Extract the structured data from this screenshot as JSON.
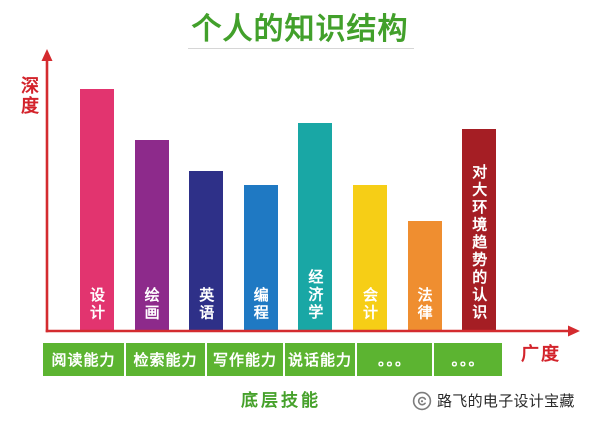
{
  "chart_data": {
    "type": "bar",
    "title": "个人的知识结构",
    "ylabel": "深度",
    "xlabel": "广度",
    "categories": [
      "设计",
      "绘画",
      "英语",
      "编程",
      "经济学",
      "会计",
      "法律",
      "对大环境趋势的认识"
    ],
    "values": [
      86,
      68,
      57,
      52,
      74,
      52,
      39,
      72
    ],
    "colors": [
      "#e2346f",
      "#8d2a8b",
      "#2e3088",
      "#1f79c3",
      "#19a7a5",
      "#f6ce16",
      "#ef8e30",
      "#a51e24"
    ],
    "grid": false
  },
  "foundation": {
    "items": [
      "阅读能力",
      "检索能力",
      "写作能力",
      "说话能力",
      "。。。",
      "。。。"
    ],
    "label": "底层技能"
  },
  "watermark": {
    "icon": "wechat-icon",
    "text": "路飞的电子设计宝藏"
  },
  "colors": {
    "title": "#42a02b",
    "axis": "#d42b2f",
    "axis_label": "#d3232b",
    "foundation_strip": "#5cb431",
    "foundation_label": "#46a12b",
    "bar_label": "#ffffff",
    "watermark_text": "#2a2a2a"
  }
}
